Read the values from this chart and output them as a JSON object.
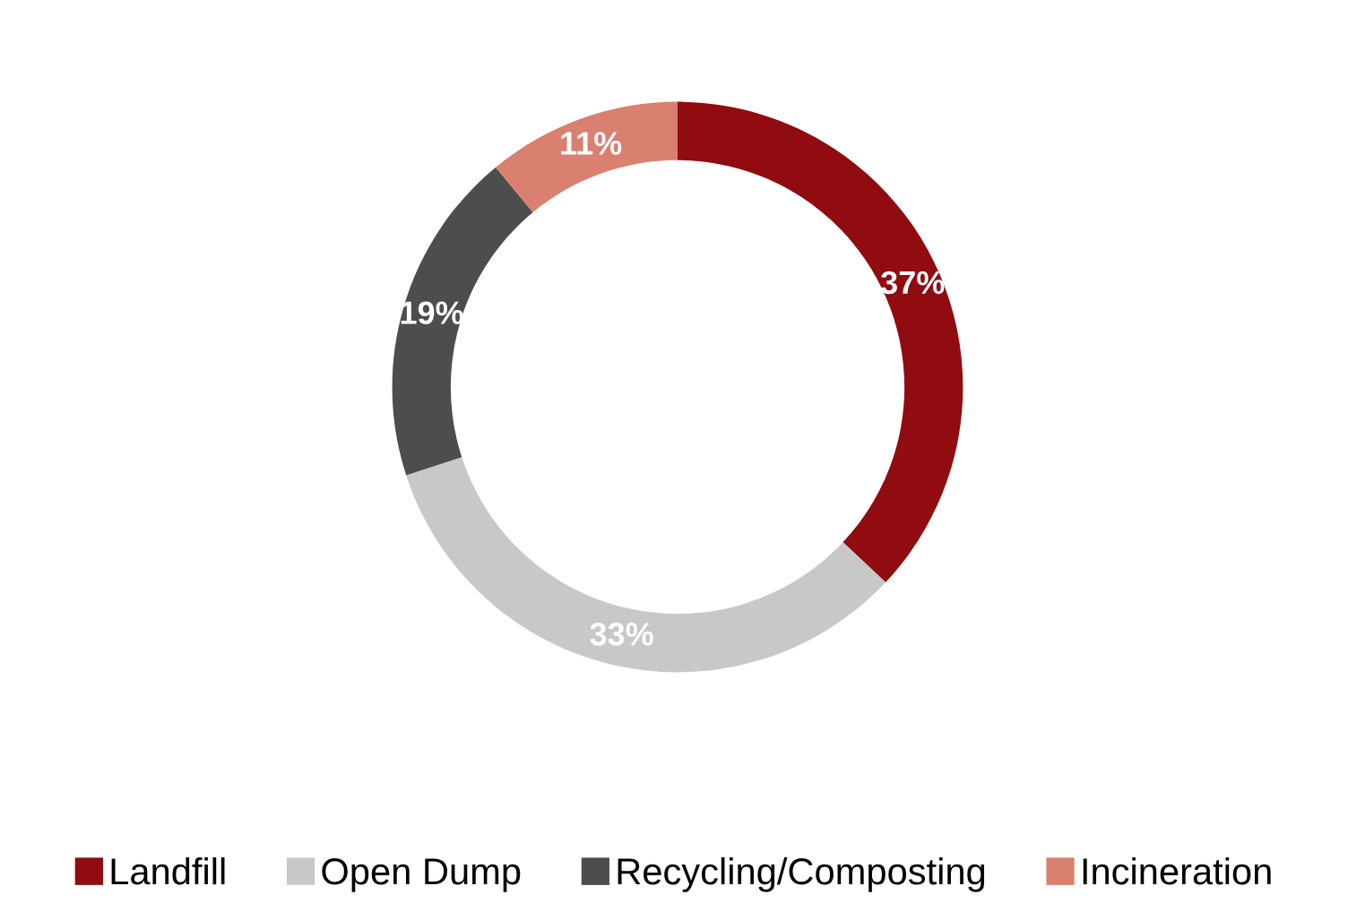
{
  "chart_data": {
    "type": "donut",
    "categories": [
      "Landfill",
      "Open Dump",
      "Recycling/Composting",
      "Incineration"
    ],
    "values": [
      37,
      33,
      19,
      11
    ],
    "colors": [
      "#900c10",
      "#c8c8c8",
      "#4d4d4d",
      "#d98070"
    ],
    "value_labels": [
      "37%",
      "33%",
      "19%",
      "11%"
    ],
    "legend": "bottom"
  }
}
